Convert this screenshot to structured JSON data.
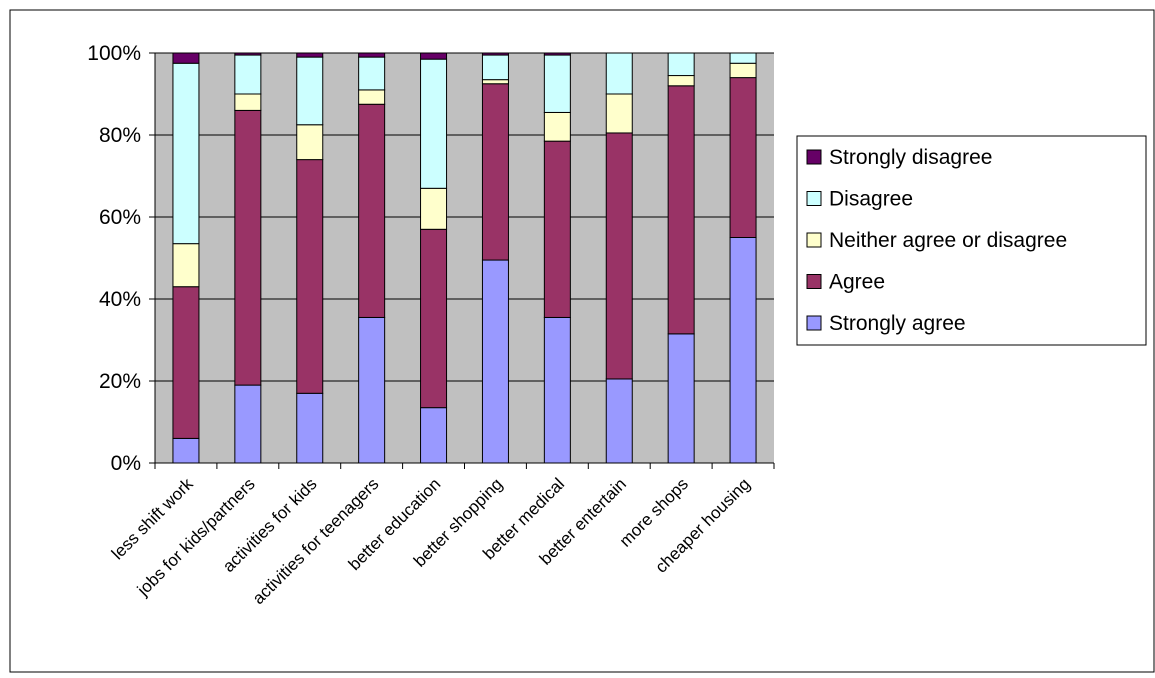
{
  "colors": {
    "strongly_disagree": "#660066",
    "disagree": "#CCFFFF",
    "neither": "#FFFFCC",
    "agree": "#993366",
    "strongly_agree": "#9999FF",
    "plot_background": "#C0C0C0",
    "gridline": "#000000",
    "axis": "#000000"
  },
  "chart_data": {
    "type": "bar",
    "stacked": true,
    "percent": true,
    "categories": [
      "less shift work",
      "jobs for kids/partners",
      "activities for kids",
      "activities for teenagers",
      "better education",
      "better shopping",
      "better medical",
      "better entertain",
      "more shops",
      "cheaper housing"
    ],
    "series": [
      {
        "name": "Strongly agree",
        "color_key": "strongly_agree",
        "values": [
          6,
          19,
          17,
          35.5,
          13.5,
          49.5,
          35.5,
          20.5,
          31.5,
          55
        ]
      },
      {
        "name": "Agree",
        "color_key": "agree",
        "values": [
          37,
          67,
          57,
          52,
          43.5,
          43,
          43,
          60,
          60.5,
          39
        ]
      },
      {
        "name": "Neither agree or disagree",
        "color_key": "neither",
        "values": [
          10.5,
          4,
          8.5,
          3.5,
          10,
          1,
          7,
          9.5,
          2.5,
          3.5
        ]
      },
      {
        "name": "Disagree",
        "color_key": "disagree",
        "values": [
          44,
          9.5,
          16.5,
          8,
          31.5,
          6,
          14,
          10,
          5.5,
          2.5
        ]
      },
      {
        "name": "Strongly disagree",
        "color_key": "strongly_disagree",
        "values": [
          2.5,
          0.5,
          1,
          1,
          1.5,
          0.5,
          0.5,
          0,
          0,
          0
        ]
      }
    ],
    "y_ticks": [
      "0%",
      "20%",
      "40%",
      "60%",
      "80%",
      "100%"
    ],
    "ylim": [
      0,
      100
    ],
    "grid": true,
    "legend_position": "right",
    "legend_order": [
      "Strongly disagree",
      "Disagree",
      "Neither agree or disagree",
      "Agree",
      "Strongly agree"
    ],
    "title": "",
    "xlabel": "",
    "ylabel": ""
  }
}
